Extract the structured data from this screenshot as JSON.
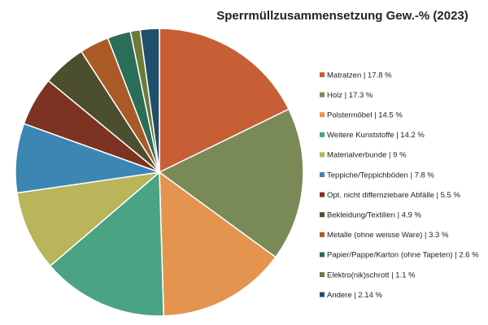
{
  "chart_data": {
    "type": "pie",
    "title": "Sperrmüllzusammensetzung Gew.-% (2023)",
    "legend_position": "right",
    "slices": [
      {
        "label": "Matratzen | 17.8 %",
        "value": 17.8,
        "color": "#c85e36"
      },
      {
        "label": "Holz | 17.3 %",
        "value": 17.3,
        "color": "#7a8a56"
      },
      {
        "label": "Polstermöbel | 14.5 %",
        "value": 14.5,
        "color": "#e5944f"
      },
      {
        "label": "Weitere Kunststoffe | 14.2 %",
        "value": 14.2,
        "color": "#4aa383"
      },
      {
        "label": "Materialverbunde | 9 %",
        "value": 9,
        "color": "#b8b55a"
      },
      {
        "label": "Teppiche/Teppichböden | 7.8 %",
        "value": 7.8,
        "color": "#3c86b3"
      },
      {
        "label": "Opt. nicht differnziebare Abfälle | 5.5 %",
        "value": 5.5,
        "color": "#7d3321"
      },
      {
        "label": "Bekleidung/Textilien | 4.9 %",
        "value": 4.9,
        "color": "#4b4f2e"
      },
      {
        "label": "Metalle (ohne weisse Ware) | 3.3 %",
        "value": 3.3,
        "color": "#a95a26"
      },
      {
        "label": "Papier/Pappe/Karton (ohne Tapeten) | 2.6 %",
        "value": 2.6,
        "color": "#2a6d59"
      },
      {
        "label": "Elektro(nik)schrott | 1.1 %",
        "value": 1.1,
        "color": "#6e7a3a"
      },
      {
        "label": "Andere | 2.14 %",
        "value": 2.14,
        "color": "#1e4f6b"
      }
    ]
  }
}
